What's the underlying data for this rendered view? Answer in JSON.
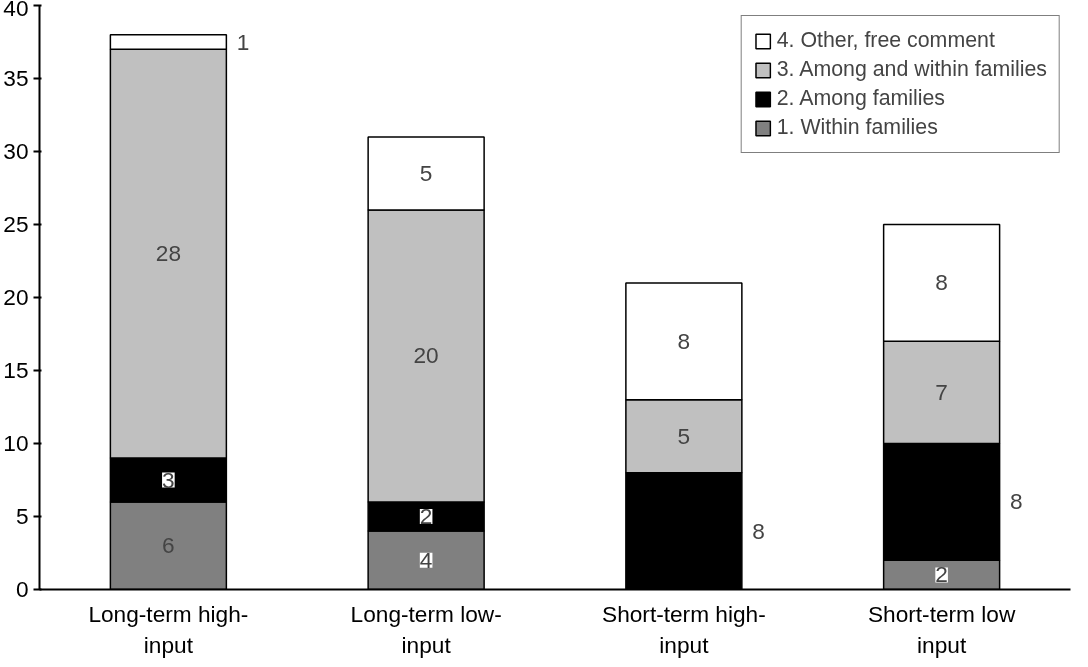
{
  "chart_data": {
    "type": "bar",
    "stacked": true,
    "categories": [
      "Long-term high-input",
      "Long-term low-input",
      "Short-term high-input",
      "Short-term low input"
    ],
    "series": [
      {
        "name": "1. Within families",
        "color": "#808080",
        "values": [
          6,
          4,
          0,
          2
        ],
        "value_labels": [
          "6",
          "4",
          null,
          "2"
        ]
      },
      {
        "name": "2. Among families",
        "color": "#000000",
        "values": [
          3,
          2,
          8,
          8
        ],
        "value_labels": [
          "3",
          "2",
          "8",
          "8"
        ]
      },
      {
        "name": "3. Among and within families",
        "color": "#c0c0c0",
        "values": [
          28,
          20,
          5,
          7
        ],
        "value_labels": [
          "28",
          "20",
          "5",
          "7"
        ]
      },
      {
        "name": "4. Other, free comment",
        "color": "#ffffff",
        "values": [
          1,
          5,
          8,
          8
        ],
        "value_labels": [
          "1",
          "5",
          "8",
          "8"
        ]
      }
    ],
    "ylim": [
      0,
      40
    ],
    "yticks": [
      0,
      5,
      10,
      15,
      20,
      25,
      30,
      35,
      40
    ],
    "grid": false,
    "legend": "top right"
  }
}
